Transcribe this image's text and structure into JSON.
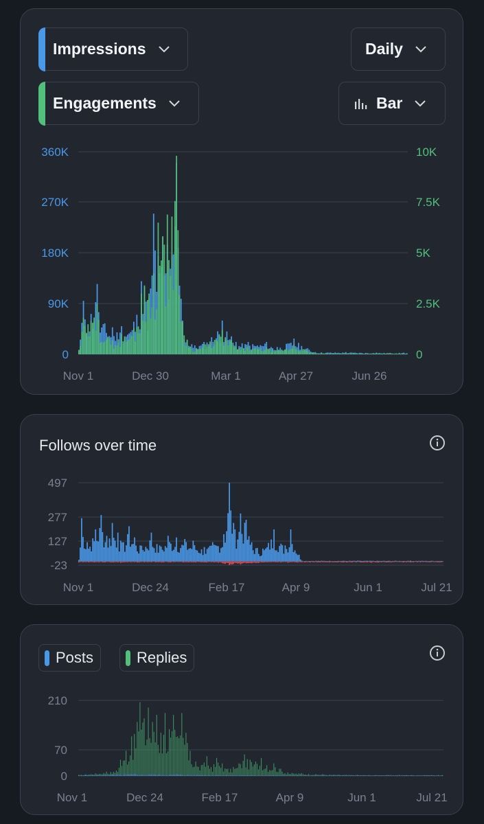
{
  "colors": {
    "blue": "#4a98e8",
    "green": "#52c07a",
    "red": "#e5484d",
    "axis_text": "#7a8290",
    "grid": "#3a414c"
  },
  "controls": {
    "metric1": "Impressions",
    "metric2": "Engagements",
    "interval": "Daily",
    "chart_type": "Bar"
  },
  "follows": {
    "title": "Follows over time"
  },
  "posts": {
    "chip_posts": "Posts",
    "chip_replies": "Replies"
  },
  "chart_data": [
    {
      "type": "bar",
      "title": "",
      "series": [
        {
          "name": "Impressions",
          "color": "#4a98e8",
          "axis": "left",
          "peaks": [
            [
              0,
              8000
            ],
            [
              3,
              95000
            ],
            [
              4,
              62000
            ],
            [
              12,
              125000
            ],
            [
              13,
              75000
            ],
            [
              22,
              48000
            ],
            [
              28,
              50000
            ],
            [
              36,
              58000
            ],
            [
              41,
              130000
            ],
            [
              43,
              120000
            ],
            [
              46,
              100000
            ],
            [
              49,
              250000
            ],
            [
              52,
              175000
            ],
            [
              55,
              210000
            ],
            [
              58,
              195000
            ],
            [
              61,
              175000
            ],
            [
              64,
              340000
            ],
            [
              68,
              60000
            ],
            [
              74,
              18000
            ],
            [
              82,
              22000
            ],
            [
              94,
              60000
            ],
            [
              100,
              32000
            ],
            [
              103,
              22000
            ],
            [
              111,
              22000
            ],
            [
              123,
              22000
            ],
            [
              130,
              13000
            ],
            [
              141,
              28000
            ],
            [
              155,
              4000
            ],
            [
              175,
              4000
            ],
            [
              195,
              3000
            ],
            [
              213,
              3000
            ]
          ]
        },
        {
          "name": "Engagements",
          "color": "#52c07a",
          "axis": "right",
          "peaks": [
            [
              0,
              200
            ],
            [
              3,
              1800
            ],
            [
              4,
              1400
            ],
            [
              12,
              2500
            ],
            [
              13,
              1700
            ],
            [
              22,
              700
            ],
            [
              28,
              1000
            ],
            [
              36,
              1300
            ],
            [
              41,
              3000
            ],
            [
              43,
              3400
            ],
            [
              46,
              3000
            ],
            [
              49,
              4000
            ],
            [
              52,
              6500
            ],
            [
              55,
              5800
            ],
            [
              58,
              6900
            ],
            [
              61,
              6800
            ],
            [
              64,
              9800
            ],
            [
              68,
              1600
            ],
            [
              74,
              300
            ],
            [
              82,
              500
            ],
            [
              94,
              1200
            ],
            [
              100,
              700
            ],
            [
              103,
              400
            ],
            [
              111,
              400
            ],
            [
              123,
              350
            ],
            [
              130,
              200
            ],
            [
              141,
              500
            ],
            [
              155,
              60
            ],
            [
              175,
              60
            ],
            [
              195,
              50
            ],
            [
              213,
              50
            ]
          ]
        }
      ],
      "y_left": {
        "ticks": [
          "360K",
          "270K",
          "180K",
          "90K",
          "0"
        ],
        "max": 360000
      },
      "y_right": {
        "ticks": [
          "10K",
          "7.5K",
          "5K",
          "2.5K",
          "0"
        ],
        "max": 10000
      },
      "x_ticks": [
        "Nov 1",
        "Dec 30",
        "Mar 1",
        "Apr 27",
        "Jun 26"
      ],
      "days": 216
    },
    {
      "type": "bar",
      "title": "Follows over time",
      "series": [
        {
          "color": "#4a98e8",
          "peaks": [
            [
              0,
              10
            ],
            [
              2,
              270
            ],
            [
              6,
              120
            ],
            [
              12,
              200
            ],
            [
              16,
              290
            ],
            [
              20,
              160
            ],
            [
              24,
              240
            ],
            [
              28,
              180
            ],
            [
              32,
              120
            ],
            [
              36,
              220
            ],
            [
              40,
              150
            ],
            [
              44,
              100
            ],
            [
              52,
              180
            ],
            [
              58,
              100
            ],
            [
              64,
              160
            ],
            [
              70,
              150
            ],
            [
              76,
              140
            ],
            [
              82,
              130
            ],
            [
              90,
              90
            ],
            [
              96,
              120
            ],
            [
              104,
              170
            ],
            [
              108,
              497
            ],
            [
              112,
              200
            ],
            [
              116,
              300
            ],
            [
              120,
              260
            ],
            [
              124,
              120
            ],
            [
              132,
              80
            ],
            [
              140,
              200
            ],
            [
              148,
              100
            ],
            [
              152,
              200
            ],
            [
              160,
              5
            ],
            [
              200,
              5
            ],
            [
              238,
              5
            ]
          ]
        },
        {
          "color": "#e5484d",
          "peaks": [
            [
              0,
              -6
            ],
            [
              30,
              -8
            ],
            [
              60,
              -6
            ],
            [
              100,
              -8
            ],
            [
              108,
              -23
            ],
            [
              116,
              -18
            ],
            [
              124,
              -12
            ],
            [
              150,
              -8
            ],
            [
              180,
              -6
            ],
            [
              210,
              -8
            ],
            [
              238,
              -6
            ]
          ]
        }
      ],
      "y_ticks": [
        "497",
        "277",
        "127",
        "-23"
      ],
      "y_values": [
        497,
        277,
        127,
        -23
      ],
      "x_ticks": [
        "Nov 1",
        "Dec 24",
        "Feb 17",
        "Apr 9",
        "Jun 1",
        "Jul 21"
      ],
      "days": 262
    },
    {
      "type": "bar",
      "title": "",
      "series": [
        {
          "name": "Replies",
          "color": "#52c07a",
          "peaks": [
            [
              0,
              3
            ],
            [
              20,
              12
            ],
            [
              27,
              15
            ],
            [
              30,
              45
            ],
            [
              34,
              70
            ],
            [
              38,
              110
            ],
            [
              42,
              150
            ],
            [
              44,
              205
            ],
            [
              47,
              160
            ],
            [
              50,
              190
            ],
            [
              53,
              150
            ],
            [
              56,
              170
            ],
            [
              59,
              120
            ],
            [
              62,
              175
            ],
            [
              65,
              130
            ],
            [
              68,
              170
            ],
            [
              71,
              110
            ],
            [
              74,
              175
            ],
            [
              77,
              120
            ],
            [
              80,
              70
            ],
            [
              84,
              40
            ],
            [
              88,
              30
            ],
            [
              92,
              55
            ],
            [
              95,
              25
            ],
            [
              99,
              50
            ],
            [
              103,
              35
            ],
            [
              107,
              20
            ],
            [
              111,
              25
            ],
            [
              115,
              35
            ],
            [
              119,
              60
            ],
            [
              123,
              45
            ],
            [
              127,
              40
            ],
            [
              131,
              50
            ],
            [
              135,
              30
            ],
            [
              140,
              35
            ],
            [
              145,
              20
            ],
            [
              150,
              10
            ],
            [
              160,
              8
            ],
            [
              175,
              5
            ],
            [
              200,
              3
            ],
            [
              230,
              3
            ],
            [
              262,
              3
            ]
          ]
        },
        {
          "name": "Posts",
          "color": "#4a98e8",
          "peaks": [
            [
              0,
              1
            ],
            [
              5,
              3
            ],
            [
              40,
              6
            ],
            [
              70,
              5
            ],
            [
              100,
              3
            ],
            [
              140,
              2
            ],
            [
              200,
              2
            ],
            [
              262,
              2
            ]
          ]
        }
      ],
      "y_ticks": [
        "210",
        "70",
        "0"
      ],
      "y_values": [
        210,
        70,
        0
      ],
      "x_ticks": [
        "Nov 1",
        "Dec 24",
        "Feb 17",
        "Apr 9",
        "Jun 1",
        "Jul 21"
      ],
      "days": 262
    }
  ]
}
